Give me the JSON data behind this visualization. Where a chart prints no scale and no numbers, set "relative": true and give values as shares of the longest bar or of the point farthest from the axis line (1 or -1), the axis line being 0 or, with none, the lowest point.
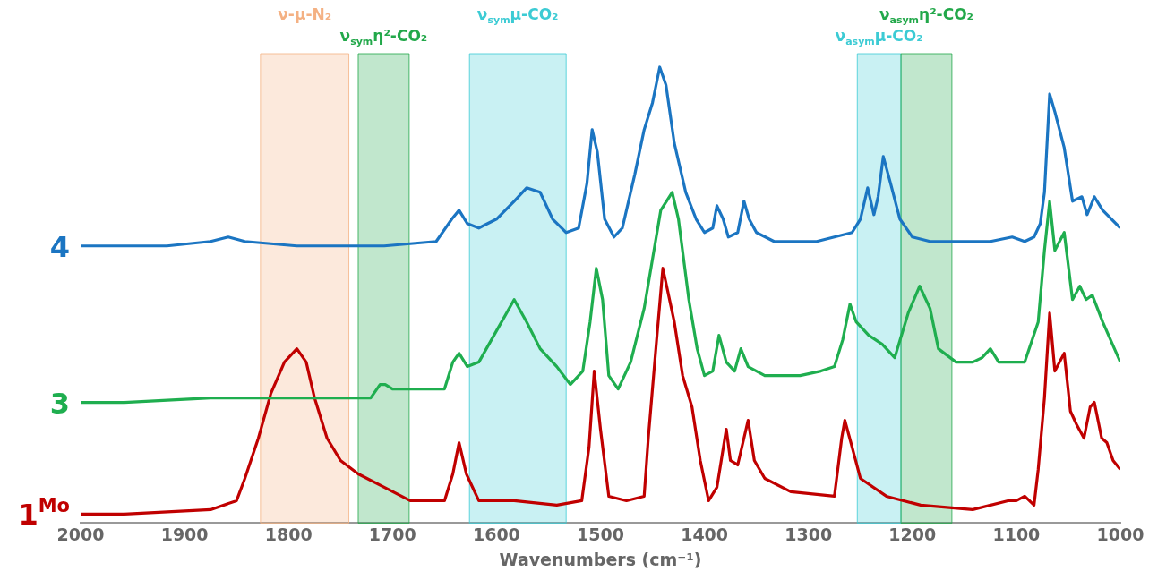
{
  "chart_data": {
    "type": "line",
    "relative": true,
    "xlabel": "Wavenumbers (cm⁻¹)",
    "xlim": [
      2000,
      1000
    ],
    "xticks": [
      2000,
      1900,
      1800,
      1700,
      1600,
      1500,
      1400,
      1300,
      1200,
      1100,
      1000
    ],
    "grid": false,
    "legend": false,
    "marker": "none",
    "line_style": "solid",
    "tick_labels": "x",
    "series": [
      {
        "name": "4",
        "color": "#1b75c2",
        "x": [
          2000,
          1967,
          1917,
          1875,
          1858,
          1842,
          1792,
          1708,
          1658,
          1643,
          1636,
          1628,
          1617,
          1600,
          1583,
          1571,
          1558,
          1546,
          1533,
          1521,
          1513,
          1508,
          1503,
          1496,
          1487,
          1479,
          1467,
          1458,
          1450,
          1443,
          1437,
          1429,
          1418,
          1408,
          1400,
          1392,
          1388,
          1382,
          1377,
          1368,
          1362,
          1357,
          1350,
          1333,
          1292,
          1258,
          1250,
          1243,
          1237,
          1233,
          1228,
          1221,
          1212,
          1200,
          1183,
          1125,
          1104,
          1092,
          1083,
          1077,
          1073,
          1068,
          1063,
          1054,
          1046,
          1037,
          1032,
          1025,
          1017,
          1000
        ],
        "values": [
          0.6,
          0.6,
          0.6,
          0.61,
          0.62,
          0.61,
          0.6,
          0.6,
          0.61,
          0.66,
          0.68,
          0.65,
          0.64,
          0.66,
          0.7,
          0.73,
          0.72,
          0.66,
          0.63,
          0.64,
          0.74,
          0.86,
          0.81,
          0.66,
          0.62,
          0.64,
          0.76,
          0.86,
          0.92,
          1.0,
          0.96,
          0.83,
          0.72,
          0.66,
          0.63,
          0.64,
          0.69,
          0.66,
          0.62,
          0.63,
          0.7,
          0.66,
          0.63,
          0.61,
          0.61,
          0.63,
          0.66,
          0.73,
          0.67,
          0.71,
          0.8,
          0.74,
          0.66,
          0.62,
          0.61,
          0.61,
          0.62,
          0.61,
          0.62,
          0.65,
          0.72,
          0.94,
          0.9,
          0.82,
          0.7,
          0.71,
          0.67,
          0.71,
          0.68,
          0.64
        ]
      },
      {
        "name": "3",
        "color": "#1fae4f",
        "x": [
          2000,
          1958,
          1875,
          1792,
          1733,
          1721,
          1712,
          1707,
          1700,
          1688,
          1675,
          1650,
          1642,
          1636,
          1628,
          1617,
          1600,
          1583,
          1571,
          1558,
          1542,
          1529,
          1517,
          1510,
          1504,
          1498,
          1492,
          1483,
          1471,
          1458,
          1450,
          1442,
          1431,
          1425,
          1415,
          1407,
          1400,
          1392,
          1386,
          1379,
          1371,
          1365,
          1358,
          1342,
          1308,
          1288,
          1275,
          1267,
          1260,
          1254,
          1242,
          1229,
          1217,
          1204,
          1193,
          1183,
          1175,
          1158,
          1142,
          1133,
          1125,
          1117,
          1108,
          1092,
          1079,
          1073,
          1068,
          1063,
          1054,
          1046,
          1039,
          1033,
          1027,
          1017,
          1000
        ],
        "values": [
          0.25,
          0.25,
          0.26,
          0.26,
          0.26,
          0.26,
          0.29,
          0.29,
          0.28,
          0.28,
          0.28,
          0.28,
          0.34,
          0.36,
          0.33,
          0.34,
          0.41,
          0.48,
          0.43,
          0.37,
          0.33,
          0.29,
          0.32,
          0.43,
          0.55,
          0.48,
          0.31,
          0.28,
          0.34,
          0.46,
          0.57,
          0.68,
          0.72,
          0.66,
          0.48,
          0.37,
          0.31,
          0.32,
          0.4,
          0.34,
          0.32,
          0.37,
          0.33,
          0.31,
          0.31,
          0.32,
          0.33,
          0.39,
          0.47,
          0.43,
          0.4,
          0.38,
          0.35,
          0.45,
          0.51,
          0.46,
          0.37,
          0.34,
          0.34,
          0.35,
          0.37,
          0.34,
          0.34,
          0.34,
          0.43,
          0.59,
          0.7,
          0.59,
          0.63,
          0.48,
          0.51,
          0.48,
          0.49,
          0.43,
          0.34
        ]
      },
      {
        "name": "1$^{Mo}$",
        "color": "#c00000",
        "x": [
          2000,
          1958,
          1875,
          1850,
          1842,
          1829,
          1817,
          1804,
          1792,
          1783,
          1775,
          1763,
          1750,
          1733,
          1708,
          1683,
          1650,
          1642,
          1636,
          1629,
          1617,
          1583,
          1542,
          1518,
          1511,
          1506,
          1500,
          1492,
          1475,
          1458,
          1454,
          1446,
          1440,
          1429,
          1421,
          1412,
          1404,
          1396,
          1388,
          1379,
          1375,
          1368,
          1362,
          1358,
          1352,
          1342,
          1317,
          1275,
          1268,
          1265,
          1258,
          1250,
          1225,
          1192,
          1142,
          1108,
          1100,
          1092,
          1083,
          1079,
          1073,
          1068,
          1063,
          1054,
          1048,
          1042,
          1035,
          1029,
          1025,
          1018,
          1013,
          1007,
          1000
        ],
        "values": [
          0.0,
          0.0,
          0.01,
          0.03,
          0.08,
          0.17,
          0.27,
          0.34,
          0.37,
          0.34,
          0.26,
          0.17,
          0.12,
          0.09,
          0.06,
          0.03,
          0.03,
          0.09,
          0.16,
          0.09,
          0.03,
          0.03,
          0.02,
          0.03,
          0.15,
          0.32,
          0.19,
          0.04,
          0.03,
          0.04,
          0.17,
          0.39,
          0.55,
          0.43,
          0.31,
          0.24,
          0.12,
          0.03,
          0.06,
          0.19,
          0.12,
          0.11,
          0.17,
          0.21,
          0.12,
          0.08,
          0.05,
          0.04,
          0.17,
          0.21,
          0.15,
          0.08,
          0.04,
          0.02,
          0.01,
          0.03,
          0.03,
          0.04,
          0.02,
          0.1,
          0.26,
          0.45,
          0.32,
          0.36,
          0.23,
          0.2,
          0.17,
          0.24,
          0.25,
          0.17,
          0.16,
          0.12,
          0.1
        ]
      }
    ],
    "bands": [
      {
        "axis": "x",
        "from": 1827,
        "to": 1742,
        "label": "ν-μ-N₂",
        "color": "#f4b183"
      },
      {
        "axis": "x",
        "from": 1733,
        "to": 1684,
        "label": "ν$_{sym}$η²-CO₂",
        "color": "#22a84a"
      },
      {
        "axis": "x",
        "from": 1626,
        "to": 1533,
        "label": "ν$_{sym}$μ-CO₂",
        "color": "#3ccbd4"
      },
      {
        "axis": "x",
        "from": 1253,
        "to": 1211,
        "label": "ν$_{asym}$μ-CO₂",
        "color": "#3ccbd4"
      },
      {
        "axis": "x",
        "from": 1211,
        "to": 1162,
        "label": "ν$_{asym}$η²-CO₂",
        "color": "#22a84a"
      }
    ]
  }
}
